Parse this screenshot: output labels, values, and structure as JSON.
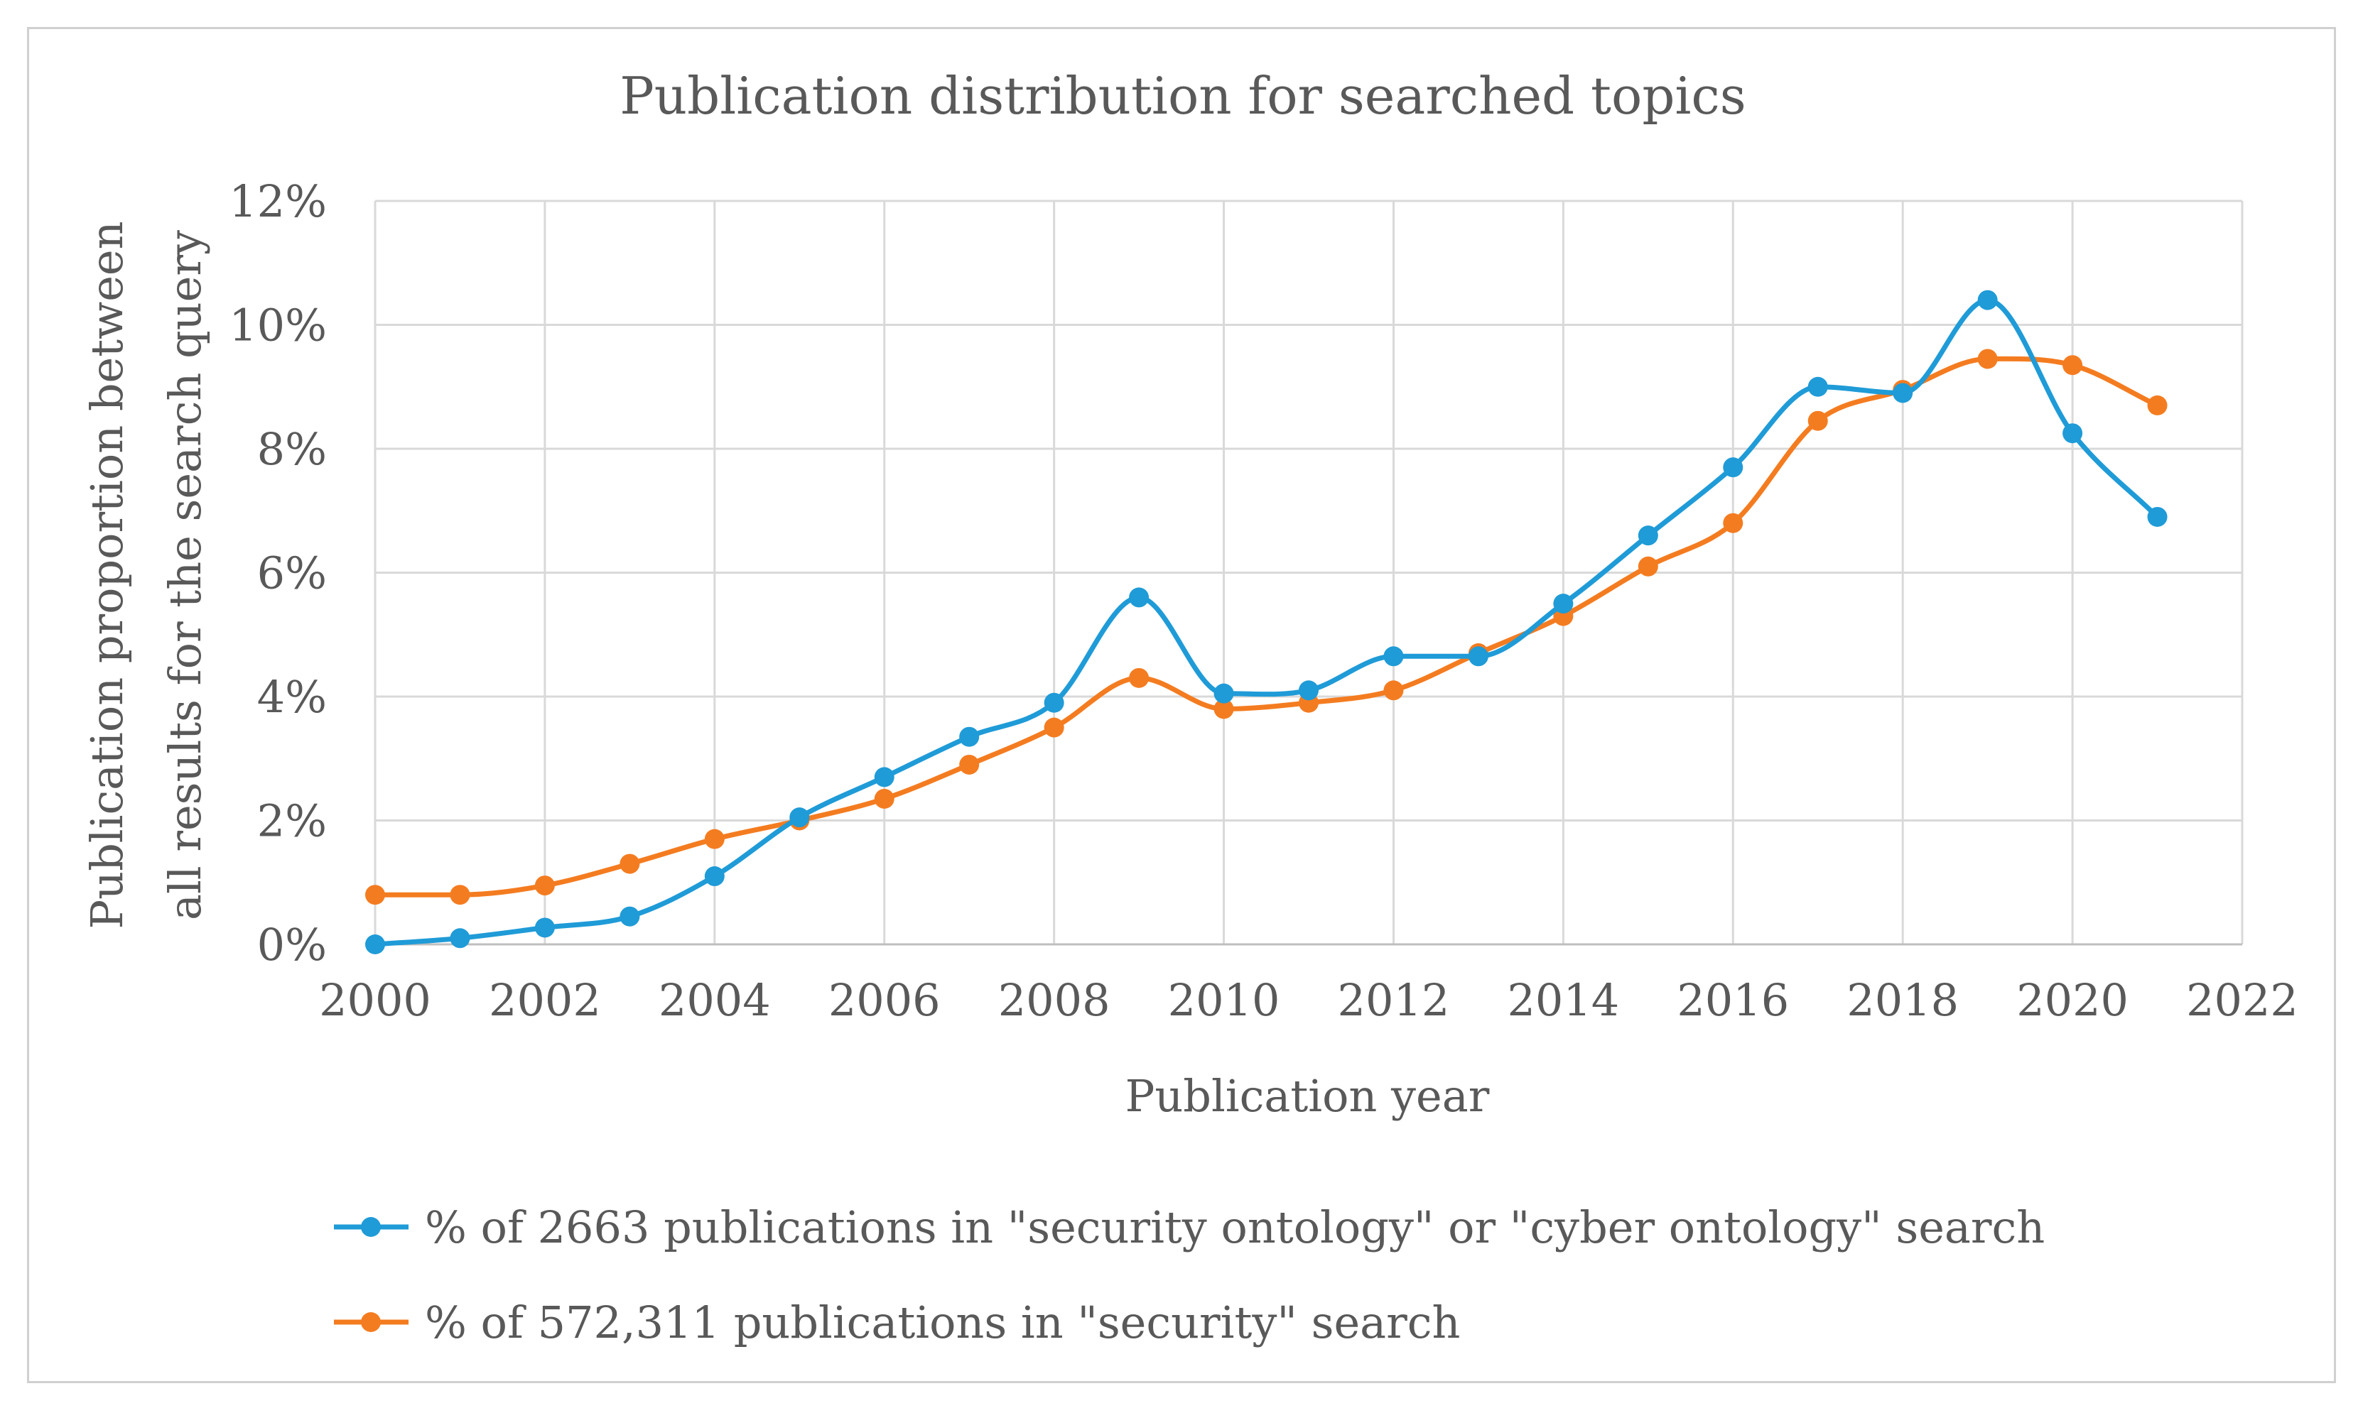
{
  "chart_data": {
    "type": "line",
    "title": "Publication distribution for searched topics",
    "xlabel": "Publication year",
    "ylabel_lines": [
      "Publication proportion between",
      "all  results for the search query"
    ],
    "xlim": [
      2000,
      2022
    ],
    "ylim": [
      0,
      12
    ],
    "x_ticks": [
      2000,
      2002,
      2004,
      2006,
      2008,
      2010,
      2012,
      2014,
      2016,
      2018,
      2020,
      2022
    ],
    "x_tick_labels": [
      "2000",
      "2002",
      "2004",
      "2006",
      "2008",
      "2010",
      "2012",
      "2014",
      "2016",
      "2018",
      "2020",
      "2022"
    ],
    "y_ticks": [
      0,
      2,
      4,
      6,
      8,
      10,
      12
    ],
    "y_tick_labels": [
      "0%",
      "2%",
      "4%",
      "6%",
      "8%",
      "10%",
      "12%"
    ],
    "grid": true,
    "legend_position": "bottom",
    "x": [
      2000,
      2001,
      2002,
      2003,
      2004,
      2005,
      2006,
      2007,
      2008,
      2009,
      2010,
      2011,
      2012,
      2013,
      2014,
      2015,
      2016,
      2017,
      2018,
      2019,
      2020,
      2021
    ],
    "series": [
      {
        "name": "% of 2663 publications in \"security ontology\" or \"cyber ontology\" search",
        "color": "#1f9bd7",
        "values": [
          0.0,
          0.1,
          0.27,
          0.45,
          1.1,
          2.05,
          2.7,
          3.35,
          3.9,
          5.6,
          4.05,
          4.1,
          4.65,
          4.65,
          5.5,
          6.6,
          7.7,
          9.0,
          8.9,
          10.4,
          8.25,
          6.9
        ]
      },
      {
        "name": "% of 572,311 publications in \"security\" search",
        "color": "#f47c20",
        "values": [
          0.8,
          0.8,
          0.95,
          1.3,
          1.7,
          2.0,
          2.35,
          2.9,
          3.5,
          4.3,
          3.8,
          3.9,
          4.1,
          4.7,
          5.3,
          6.1,
          6.8,
          8.45,
          8.95,
          9.45,
          9.35,
          8.7
        ]
      }
    ]
  }
}
